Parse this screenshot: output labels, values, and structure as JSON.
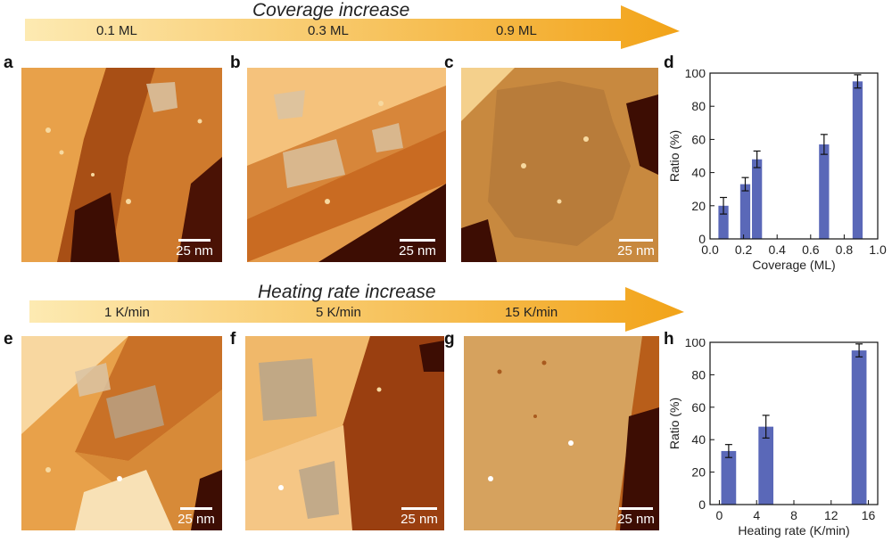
{
  "colors": {
    "arrow_start": "#fdeab2",
    "arrow_end": "#f2a318",
    "bar_fill": "#5a68b8",
    "stm_dark": "#3a0a02",
    "stm_mid": "#b85e1a",
    "stm_light": "#f7d9a0"
  },
  "top_arrow": {
    "title": "Coverage increase",
    "ticks": [
      "0.1 ML",
      "0.3 ML",
      "0.9 ML"
    ]
  },
  "bottom_arrow": {
    "title": "Heating rate increase",
    "ticks": [
      "1 K/min",
      "5 K/min",
      "15 K/min"
    ]
  },
  "panels": {
    "a": {
      "letter": "a",
      "scale_label": "25 nm"
    },
    "b": {
      "letter": "b",
      "scale_label": "25 nm"
    },
    "c": {
      "letter": "c",
      "scale_label": "25 nm"
    },
    "d": {
      "letter": "d"
    },
    "e": {
      "letter": "e",
      "scale_label": "25 nm"
    },
    "f": {
      "letter": "f",
      "scale_label": "25 nm"
    },
    "g": {
      "letter": "g",
      "scale_label": "25 nm"
    },
    "h": {
      "letter": "h"
    }
  },
  "chart_data": [
    {
      "type": "bar",
      "panel": "d",
      "xlabel": "Coverage (ML)",
      "ylabel": "Ratio (%)",
      "xlim": [
        0,
        1
      ],
      "ylim": [
        0,
        100
      ],
      "xticks": [
        0.0,
        0.2,
        0.4,
        0.6,
        0.8,
        1.0
      ],
      "xtick_labels": [
        "0.0",
        "0.2",
        "0.4",
        "0.6",
        "0.8",
        "1.0"
      ],
      "yticks": [
        0,
        20,
        40,
        60,
        80,
        100
      ],
      "ytick_labels": [
        "0",
        "20",
        "40",
        "60",
        "80",
        "100"
      ],
      "bar_width": 0.06,
      "x": [
        0.08,
        0.21,
        0.28,
        0.68,
        0.88
      ],
      "values": [
        20,
        33,
        48,
        57,
        95
      ],
      "errors": [
        5,
        4,
        5,
        6,
        4
      ]
    },
    {
      "type": "bar",
      "panel": "h",
      "xlabel": "Heating rate (K/min)",
      "ylabel": "Ratio (%)",
      "xlim": [
        -1,
        17
      ],
      "ylim": [
        0,
        100
      ],
      "xticks": [
        0,
        4,
        8,
        12,
        16
      ],
      "xtick_labels": [
        "0",
        "4",
        "8",
        "12",
        "16"
      ],
      "yticks": [
        0,
        20,
        40,
        60,
        80,
        100
      ],
      "ytick_labels": [
        "0",
        "20",
        "40",
        "60",
        "80",
        "100"
      ],
      "bar_width": 1.6,
      "x": [
        1,
        5,
        15
      ],
      "values": [
        33,
        48,
        95
      ],
      "errors": [
        4,
        7,
        4
      ]
    }
  ]
}
